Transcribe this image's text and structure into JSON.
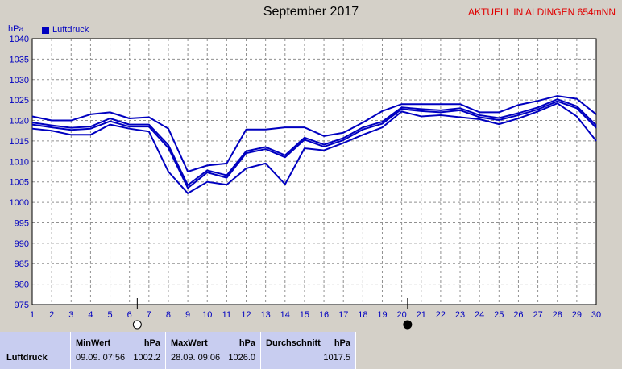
{
  "header": {
    "title": "September 2017",
    "station": "AKTUELL IN ALDINGEN 654mNN",
    "unit": "hPa",
    "legend_label": "Luftdruck"
  },
  "chart_data": {
    "type": "line",
    "title": "September 2017",
    "ylabel": "hPa",
    "ylim": [
      975,
      1040
    ],
    "yticks": [
      975,
      980,
      985,
      990,
      995,
      1000,
      1005,
      1010,
      1015,
      1020,
      1025,
      1030,
      1035,
      1040
    ],
    "x": [
      1,
      2,
      3,
      4,
      5,
      6,
      7,
      8,
      9,
      10,
      11,
      12,
      13,
      14,
      15,
      16,
      17,
      18,
      19,
      20,
      21,
      22,
      23,
      24,
      25,
      26,
      27,
      28,
      29,
      30
    ],
    "grid": true,
    "legend": "top-left",
    "color": "#0000c0",
    "series": [
      {
        "name": "Luftdruck",
        "role": "max",
        "values": [
          1021,
          1020,
          1020,
          1021.5,
          1022,
          1020.5,
          1020.8,
          1018,
          1007.5,
          1009,
          1009.5,
          1017.8,
          1017.8,
          1018.3,
          1018.3,
          1016.2,
          1017,
          1019.5,
          1022.3,
          1024,
          1024,
          1024,
          1024,
          1022,
          1022,
          1023.8,
          1024.8,
          1026,
          1025.3,
          1021.5
        ]
      },
      {
        "name": "Luftdruck",
        "role": "avg_upper",
        "values": [
          1019.5,
          1018.8,
          1018.2,
          1018.5,
          1020.5,
          1019,
          1019,
          1014,
          1004.2,
          1007.8,
          1006.6,
          1012.5,
          1013.5,
          1011.5,
          1015.8,
          1014.1,
          1015.7,
          1018.3,
          1019.7,
          1023.2,
          1022.8,
          1022.5,
          1023,
          1021.3,
          1020.6,
          1021.8,
          1023.2,
          1025.2,
          1023.5,
          1018.8
        ]
      },
      {
        "name": "Luftdruck",
        "role": "avg_lower",
        "values": [
          1019,
          1018.3,
          1017.7,
          1018,
          1019.8,
          1018.5,
          1018.5,
          1013.3,
          1003.5,
          1007.3,
          1006,
          1012,
          1013,
          1011,
          1015.3,
          1013.6,
          1015.2,
          1017.8,
          1019.2,
          1022.8,
          1022.3,
          1022,
          1022.5,
          1020.8,
          1020.1,
          1021.3,
          1022.7,
          1024.7,
          1023,
          1018.2
        ]
      },
      {
        "name": "Luftdruck",
        "role": "min",
        "values": [
          1018,
          1017.5,
          1016.5,
          1016.5,
          1019,
          1018,
          1017.3,
          1007.5,
          1002.2,
          1005,
          1004.3,
          1008.3,
          1009.5,
          1004.4,
          1013.2,
          1012.7,
          1014.5,
          1016.5,
          1018.3,
          1022.2,
          1021,
          1021.3,
          1020.8,
          1020.3,
          1019.1,
          1020.5,
          1022.2,
          1024.2,
          1021,
          1015
        ]
      }
    ],
    "markers": [
      {
        "x": 6.4,
        "kind": "full-moon"
      },
      {
        "x": 20.3,
        "kind": "new-moon"
      }
    ]
  },
  "stats": {
    "row_label": "Luftdruck",
    "min_header": "MinWert",
    "min_unit": "hPa",
    "min_time": "09.09.  07:56",
    "min_value": "1002.2",
    "max_header": "MaxWert",
    "max_unit": "hPa",
    "max_time": "28.09.  09:06",
    "max_value": "1026.0",
    "avg_header": "Durchschnitt",
    "avg_unit": "hPa",
    "avg_value": "1017.5"
  }
}
